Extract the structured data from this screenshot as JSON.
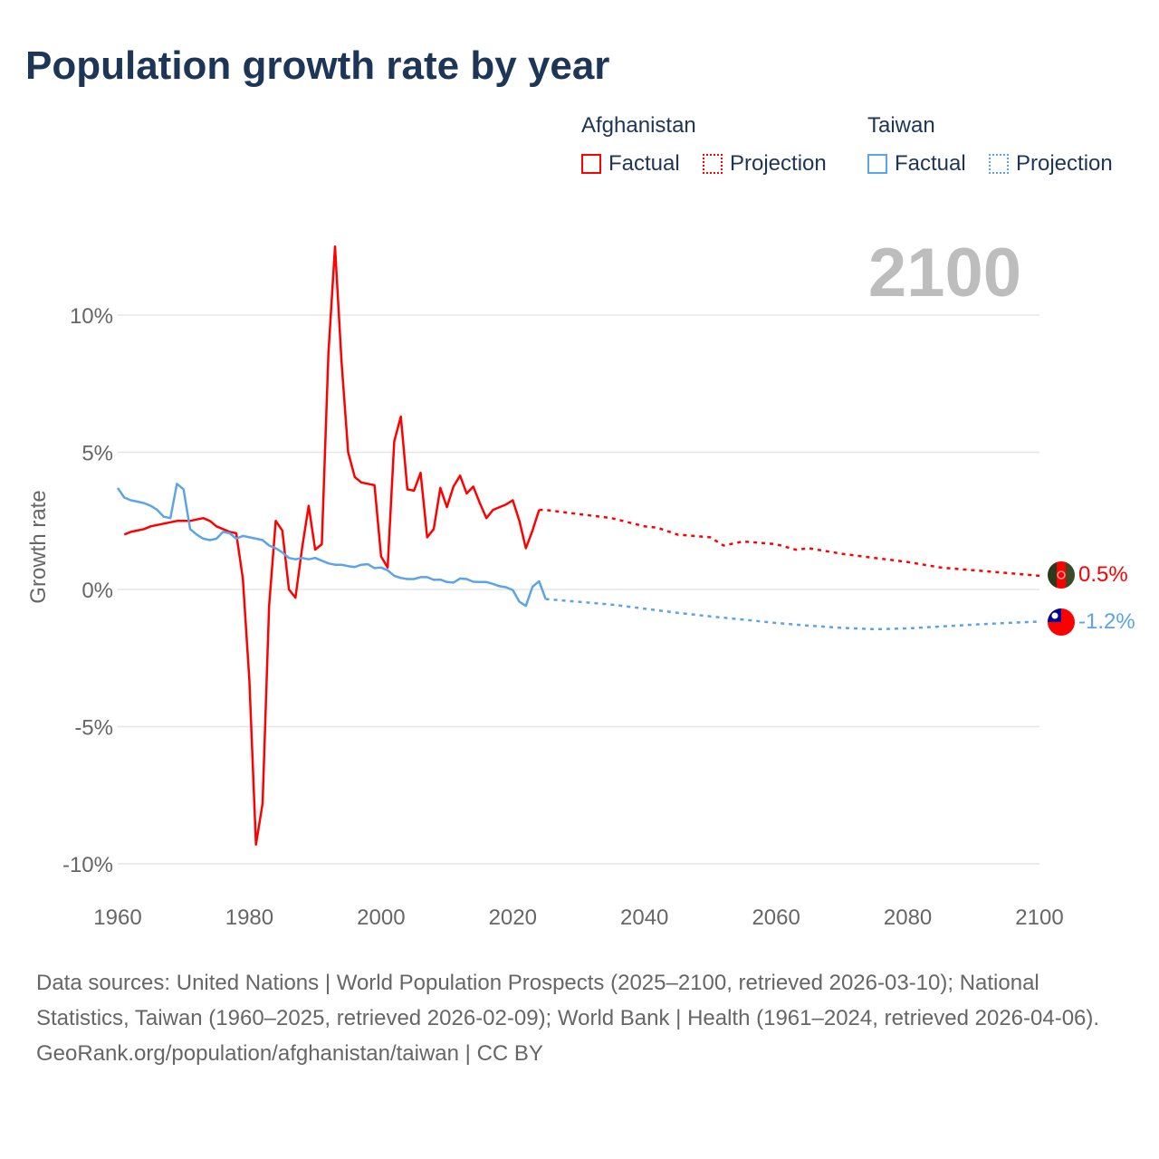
{
  "title": "Population growth rate by year",
  "legend": {
    "groups": [
      {
        "name": "Afghanistan",
        "factual": "Factual",
        "projection": "Projection",
        "color": "#ff0000"
      },
      {
        "name": "Taiwan",
        "factual": "Factual",
        "projection": "Projection",
        "color": "#5ba4e8"
      }
    ]
  },
  "current_year": "2100",
  "end_labels": {
    "afghanistan": "0.5%",
    "taiwan": "-1.2%"
  },
  "footer": {
    "sources": "Data sources: United Nations | World Population Prospects (2025–2100, retrieved 2026-03-10); National Statistics, Taiwan (1960–2025, retrieved 2026-02-09); World Bank | Health (1961–2024, retrieved 2026-04-06).",
    "credit": "GeoRank.org/population/afghanistan/taiwan | CC BY"
  },
  "chart_data": {
    "type": "line",
    "title": "Population growth rate by year",
    "xlabel": "",
    "ylabel": "Growth rate",
    "xlim": [
      1960,
      2100
    ],
    "ylim": [
      -10.5,
      13
    ],
    "x_ticks": [
      "1960",
      "1980",
      "2000",
      "2020",
      "2040",
      "2060",
      "2080",
      "2100"
    ],
    "x_tick_values": [
      1960,
      1980,
      2000,
      2020,
      2040,
      2060,
      2080,
      2100
    ],
    "y_ticks": [
      "10%",
      "5%",
      "0%",
      "-5%",
      "-10%"
    ],
    "y_tick_values": [
      10,
      5,
      0,
      -5,
      -10
    ],
    "grid": true,
    "series": [
      {
        "name": "Afghanistan Factual",
        "color": "#ff0000",
        "style": "solid",
        "x": [
          1961,
          1962,
          1963,
          1964,
          1965,
          1966,
          1967,
          1968,
          1969,
          1970,
          1971,
          1972,
          1973,
          1974,
          1975,
          1976,
          1977,
          1978,
          1979,
          1980,
          1981,
          1982,
          1983,
          1984,
          1985,
          1986,
          1987,
          1988,
          1989,
          1990,
          1991,
          1992,
          1993,
          1994,
          1995,
          1996,
          1997,
          1998,
          1999,
          2000,
          2001,
          2002,
          2003,
          2004,
          2005,
          2006,
          2007,
          2008,
          2009,
          2010,
          2011,
          2012,
          2013,
          2014,
          2015,
          2016,
          2017,
          2018,
          2019,
          2020,
          2021,
          2022,
          2023,
          2024
        ],
        "y": [
          2.0,
          2.1,
          2.15,
          2.2,
          2.3,
          2.35,
          2.4,
          2.45,
          2.5,
          2.5,
          2.5,
          2.55,
          2.6,
          2.5,
          2.3,
          2.2,
          2.1,
          2.05,
          0.4,
          -3.3,
          -9.3,
          -7.8,
          -0.6,
          2.5,
          2.15,
          0.0,
          -0.3,
          1.5,
          3.05,
          1.45,
          1.65,
          8.6,
          12.5,
          8.3,
          5.0,
          4.1,
          3.9,
          3.85,
          3.8,
          1.2,
          0.8,
          5.4,
          6.3,
          3.65,
          3.6,
          4.25,
          1.9,
          2.2,
          3.7,
          3.0,
          3.75,
          4.15,
          3.5,
          3.75,
          3.15,
          2.6,
          2.9,
          3.0,
          3.1,
          3.25,
          2.5,
          1.5,
          2.15,
          2.9
        ]
      },
      {
        "name": "Afghanistan Projection",
        "color": "#ff0000",
        "style": "dotted",
        "x": [
          2024,
          2025,
          2030,
          2035,
          2040,
          2042,
          2045,
          2050,
          2052,
          2055,
          2060,
          2063,
          2065,
          2070,
          2075,
          2080,
          2085,
          2090,
          2095,
          2100
        ],
        "y": [
          2.9,
          2.9,
          2.75,
          2.6,
          2.3,
          2.25,
          2.0,
          1.9,
          1.6,
          1.75,
          1.65,
          1.45,
          1.5,
          1.3,
          1.15,
          1.0,
          0.8,
          0.7,
          0.6,
          0.5
        ]
      },
      {
        "name": "Taiwan Factual",
        "color": "#5ba4e8",
        "style": "solid",
        "x": [
          1960,
          1961,
          1962,
          1963,
          1964,
          1965,
          1966,
          1967,
          1968,
          1969,
          1970,
          1971,
          1972,
          1973,
          1974,
          1975,
          1976,
          1977,
          1978,
          1979,
          1980,
          1981,
          1982,
          1983,
          1984,
          1985,
          1986,
          1987,
          1988,
          1989,
          1990,
          1991,
          1992,
          1993,
          1994,
          1995,
          1996,
          1997,
          1998,
          1999,
          2000,
          2001,
          2002,
          2003,
          2004,
          2005,
          2006,
          2007,
          2008,
          2009,
          2010,
          2011,
          2012,
          2013,
          2014,
          2015,
          2016,
          2017,
          2018,
          2019,
          2020,
          2021,
          2022,
          2023,
          2024,
          2025
        ],
        "y": [
          3.7,
          3.35,
          3.25,
          3.2,
          3.15,
          3.05,
          2.9,
          2.65,
          2.6,
          3.85,
          3.65,
          2.2,
          2.0,
          1.85,
          1.8,
          1.85,
          2.1,
          2.05,
          1.85,
          1.95,
          1.9,
          1.85,
          1.8,
          1.6,
          1.5,
          1.35,
          1.15,
          1.1,
          1.15,
          1.1,
          1.15,
          1.05,
          0.95,
          0.9,
          0.9,
          0.85,
          0.82,
          0.9,
          0.92,
          0.78,
          0.8,
          0.7,
          0.5,
          0.42,
          0.38,
          0.38,
          0.45,
          0.45,
          0.35,
          0.36,
          0.27,
          0.25,
          0.4,
          0.38,
          0.28,
          0.27,
          0.27,
          0.2,
          0.12,
          0.08,
          -0.02,
          -0.45,
          -0.6,
          0.1,
          0.3,
          -0.35
        ]
      },
      {
        "name": "Taiwan Projection",
        "color": "#5ba4e8",
        "style": "dotted",
        "x": [
          2025,
          2030,
          2035,
          2040,
          2045,
          2050,
          2055,
          2060,
          2065,
          2070,
          2075,
          2080,
          2085,
          2090,
          2095,
          2100
        ],
        "y": [
          -0.35,
          -0.45,
          -0.55,
          -0.7,
          -0.85,
          -0.98,
          -1.1,
          -1.22,
          -1.32,
          -1.4,
          -1.45,
          -1.42,
          -1.35,
          -1.28,
          -1.22,
          -1.17
        ]
      }
    ]
  }
}
